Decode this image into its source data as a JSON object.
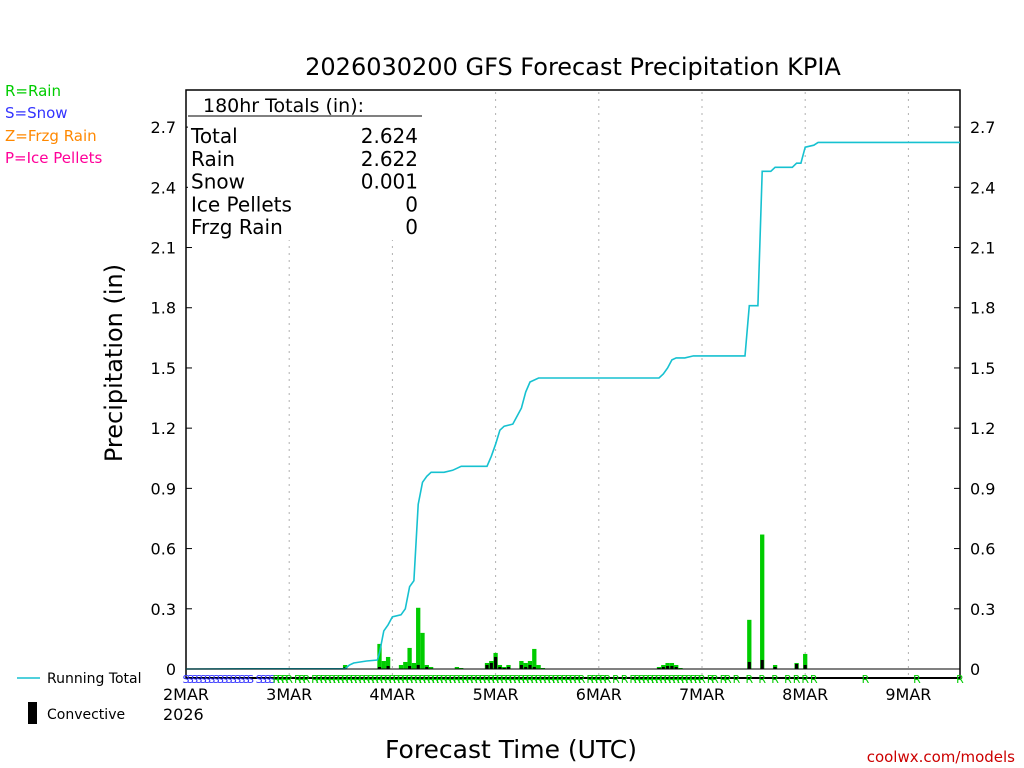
{
  "chart_data": {
    "type": "bar+line",
    "title": "2026030200 GFS Forecast Precipitation KPIA",
    "xlabel": "Forecast Time (UTC)",
    "ylabel": "Precipitation (in)",
    "ylim": [
      0,
      2.9
    ],
    "yticks": [
      "0",
      "0.3",
      "0.6",
      "0.9",
      "1.2",
      "1.5",
      "1.8",
      "2.1",
      "2.4",
      "2.7"
    ],
    "xlim_hours": [
      0,
      180
    ],
    "xticks": [
      {
        "hour": 0,
        "label": "2MAR"
      },
      {
        "hour": 24,
        "label": "3MAR"
      },
      {
        "hour": 48,
        "label": "4MAR"
      },
      {
        "hour": 72,
        "label": "5MAR"
      },
      {
        "hour": 96,
        "label": "6MAR"
      },
      {
        "hour": 120,
        "label": "7MAR"
      },
      {
        "hour": 144,
        "label": "8MAR"
      },
      {
        "hour": 168,
        "label": "9MAR"
      }
    ],
    "year_label": "2026",
    "legend_types": [
      {
        "label": "R=Rain",
        "color": "#00cc00"
      },
      {
        "label": "S=Snow",
        "color": "#3333ff"
      },
      {
        "label": "Z=Frzg Rain",
        "color": "#ff8800"
      },
      {
        "label": "P=Ice Pellets",
        "color": "#ff0099"
      }
    ],
    "legend_series": {
      "running_total": "Running Total",
      "convective": "Convective"
    },
    "totals_box": {
      "header": "180hr Totals (in):",
      "rows": [
        {
          "label": "Total",
          "value": "2.624"
        },
        {
          "label": "Rain",
          "value": "2.622"
        },
        {
          "label": "Snow",
          "value": "0.001"
        },
        {
          "label": "Ice Pellets",
          "value": "0"
        },
        {
          "label": "Frzg Rain",
          "value": "0"
        }
      ]
    },
    "running_total": [
      [
        0,
        0
      ],
      [
        14,
        0.001
      ],
      [
        37,
        0.001
      ],
      [
        38,
        0.02
      ],
      [
        39,
        0.03
      ],
      [
        42,
        0.04
      ],
      [
        44.5,
        0.045
      ],
      [
        45,
        0.08
      ],
      [
        46,
        0.19
      ],
      [
        47,
        0.22
      ],
      [
        48,
        0.26
      ],
      [
        50,
        0.27
      ],
      [
        51,
        0.3
      ],
      [
        52,
        0.41
      ],
      [
        53,
        0.44
      ],
      [
        54,
        0.82
      ],
      [
        55,
        0.93
      ],
      [
        56,
        0.96
      ],
      [
        57,
        0.98
      ],
      [
        60,
        0.98
      ],
      [
        62,
        0.99
      ],
      [
        63,
        1.0
      ],
      [
        64,
        1.01
      ],
      [
        70,
        1.01
      ],
      [
        71,
        1.06
      ],
      [
        72,
        1.12
      ],
      [
        73,
        1.19
      ],
      [
        74,
        1.21
      ],
      [
        76,
        1.22
      ],
      [
        77,
        1.26
      ],
      [
        78,
        1.3
      ],
      [
        79,
        1.38
      ],
      [
        80,
        1.43
      ],
      [
        82,
        1.45
      ],
      [
        95,
        1.45
      ],
      [
        110,
        1.45
      ],
      [
        111,
        1.47
      ],
      [
        112,
        1.5
      ],
      [
        113,
        1.54
      ],
      [
        114,
        1.55
      ],
      [
        116,
        1.55
      ],
      [
        118,
        1.56
      ],
      [
        130,
        1.56
      ],
      [
        131,
        1.81
      ],
      [
        133,
        1.81
      ],
      [
        134,
        2.48
      ],
      [
        136,
        2.48
      ],
      [
        137,
        2.5
      ],
      [
        141,
        2.5
      ],
      [
        142,
        2.52
      ],
      [
        143,
        2.52
      ],
      [
        144,
        2.6
      ],
      [
        146,
        2.61
      ],
      [
        147,
        2.624
      ],
      [
        180,
        2.624
      ]
    ],
    "interval_bars": [
      {
        "hour": 37,
        "value": 0.02,
        "convective": 0.008
      },
      {
        "hour": 45,
        "value": 0.125,
        "convective": 0.01
      },
      {
        "hour": 46,
        "value": 0.04,
        "convective": 0
      },
      {
        "hour": 47,
        "value": 0.06,
        "convective": 0.015
      },
      {
        "hour": 50,
        "value": 0.02,
        "convective": 0
      },
      {
        "hour": 51,
        "value": 0.035,
        "convective": 0
      },
      {
        "hour": 52,
        "value": 0.105,
        "convective": 0.015
      },
      {
        "hour": 53,
        "value": 0.03,
        "convective": 0
      },
      {
        "hour": 54,
        "value": 0.305,
        "convective": 0.02
      },
      {
        "hour": 55,
        "value": 0.18,
        "convective": 0
      },
      {
        "hour": 56,
        "value": 0.02,
        "convective": 0.01
      },
      {
        "hour": 57,
        "value": 0.01,
        "convective": 0
      },
      {
        "hour": 63,
        "value": 0.01,
        "convective": 0
      },
      {
        "hour": 64,
        "value": 0.005,
        "convective": 0
      },
      {
        "hour": 70,
        "value": 0.03,
        "convective": 0.02
      },
      {
        "hour": 71,
        "value": 0.04,
        "convective": 0.03
      },
      {
        "hour": 72,
        "value": 0.08,
        "convective": 0.06
      },
      {
        "hour": 73,
        "value": 0.02,
        "convective": 0.01
      },
      {
        "hour": 74,
        "value": 0.01,
        "convective": 0.005
      },
      {
        "hour": 75,
        "value": 0.02,
        "convective": 0.01
      },
      {
        "hour": 78,
        "value": 0.04,
        "convective": 0.02
      },
      {
        "hour": 79,
        "value": 0.03,
        "convective": 0.01
      },
      {
        "hour": 80,
        "value": 0.04,
        "convective": 0.02
      },
      {
        "hour": 81,
        "value": 0.1,
        "convective": 0.01
      },
      {
        "hour": 82,
        "value": 0.02,
        "convective": 0
      },
      {
        "hour": 83,
        "value": 0.005,
        "convective": 0
      },
      {
        "hour": 110,
        "value": 0.01,
        "convective": 0.005
      },
      {
        "hour": 111,
        "value": 0.02,
        "convective": 0.01
      },
      {
        "hour": 112,
        "value": 0.03,
        "convective": 0.015
      },
      {
        "hour": 113,
        "value": 0.03,
        "convective": 0.015
      },
      {
        "hour": 114,
        "value": 0.02,
        "convective": 0.01
      },
      {
        "hour": 115,
        "value": 0.005,
        "convective": 0
      },
      {
        "hour": 131,
        "value": 0.245,
        "convective": 0.035
      },
      {
        "hour": 134,
        "value": 0.67,
        "convective": 0.045
      },
      {
        "hour": 137,
        "value": 0.02,
        "convective": 0.01
      },
      {
        "hour": 142,
        "value": 0.03,
        "convective": 0.025
      },
      {
        "hour": 144,
        "value": 0.075,
        "convective": 0.02
      }
    ],
    "ptype_rows": [
      {
        "hours": [
          0,
          1,
          2,
          3,
          4,
          5,
          6,
          7,
          8,
          9,
          10,
          11,
          12,
          13,
          14,
          15
        ],
        "marker": "S",
        "color": "#3333ff"
      },
      {
        "hours": [
          17,
          18,
          19,
          20
        ],
        "marker": "S",
        "color": "#3333ff"
      },
      {
        "hours": [
          21,
          22,
          23,
          24,
          26,
          27,
          28,
          30,
          31,
          32,
          33,
          34,
          35,
          36,
          37,
          38,
          39,
          40,
          41,
          42,
          43,
          44,
          45,
          46,
          47,
          48,
          49,
          50,
          51,
          52,
          53,
          54,
          55,
          56,
          57,
          58,
          59,
          60,
          61,
          62,
          63,
          64,
          65,
          66,
          67,
          68,
          69,
          70,
          71,
          72,
          73,
          74,
          75,
          76,
          77,
          78,
          79,
          80,
          81,
          82,
          83,
          84,
          85,
          86,
          87,
          88,
          89,
          90,
          91,
          92,
          94,
          95,
          96,
          97,
          98,
          100,
          102,
          104,
          105,
          106,
          107,
          108,
          109,
          110,
          111,
          112,
          113,
          114,
          115,
          116,
          117,
          118,
          119,
          120,
          122,
          123,
          125,
          126,
          128,
          131,
          134,
          137,
          140,
          142,
          144,
          146,
          158,
          170,
          180
        ],
        "marker": "R",
        "color": "#00cc00"
      }
    ]
  },
  "footer": {
    "credit": "coolwx.com/models"
  }
}
